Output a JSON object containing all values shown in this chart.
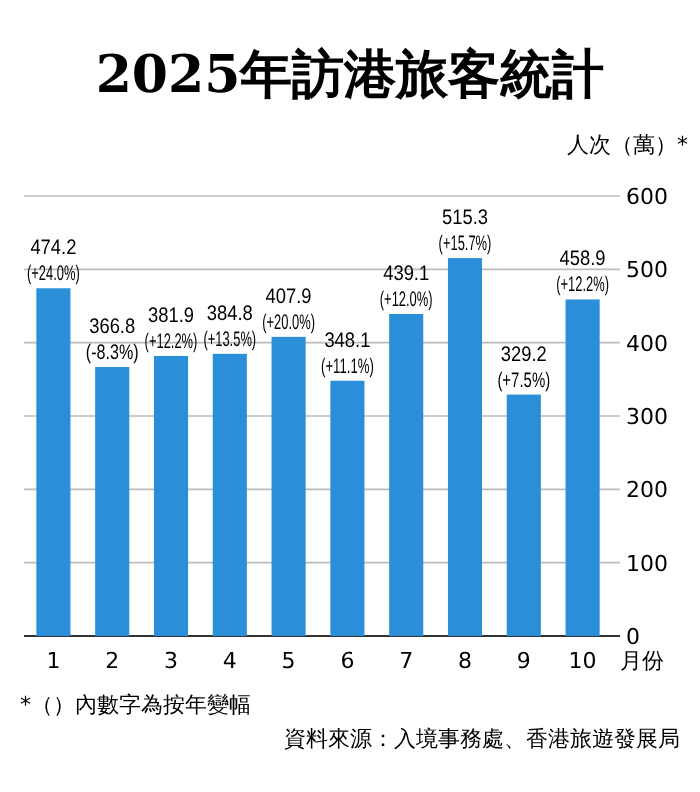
{
  "chart_data": {
    "type": "bar",
    "title": "2025年訪港旅客統計",
    "ylabel": "人次（萬）*",
    "xlabel": "月份",
    "categories": [
      "1",
      "2",
      "3",
      "4",
      "5",
      "6",
      "7",
      "8",
      "9",
      "10"
    ],
    "values": [
      474.2,
      366.8,
      381.9,
      384.8,
      407.9,
      348.1,
      439.1,
      515.3,
      329.2,
      458.9
    ],
    "value_labels": [
      "474.2\n(+24.0%)",
      "366.8\n(-8.3%)",
      "381.9\n(+12.2%)",
      "384.8\n(+13.5%)",
      "407.9\n(+20.0%)",
      "348.1\n(+11.1%)",
      "439.1\n(+12.0%)",
      "515.3\n(+15.7%)",
      "329.2\n(+7.5%)",
      "458.9\n(+12.2%)"
    ],
    "color": "#2a8fd8",
    "ylim": [
      0,
      600
    ],
    "yticks": [
      0,
      100,
      200,
      300,
      400,
      500,
      600
    ],
    "grid": "y",
    "annotations": [
      "*（）內數字為按年變幅",
      "資料來源：入境事務處、香港旅遊發展局"
    ]
  }
}
